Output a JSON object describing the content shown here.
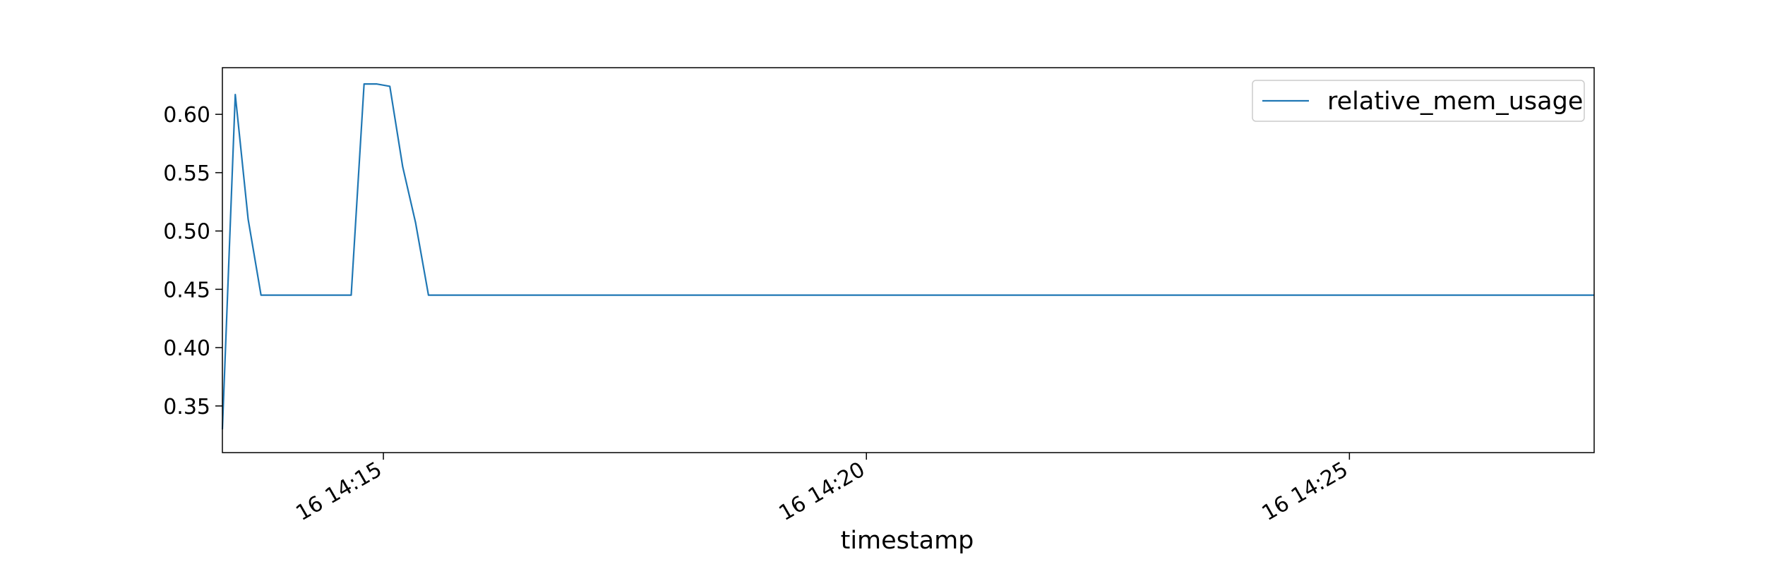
{
  "chart_data": {
    "type": "line",
    "title": "",
    "xlabel": "timestamp",
    "ylabel": "",
    "x_unit": "time (MM:SS past 14:00 on day 16)",
    "xlim": [
      "13:20",
      "27:32"
    ],
    "ylim": [
      0.31,
      0.64
    ],
    "yticks": [
      0.35,
      0.4,
      0.45,
      0.5,
      0.55,
      0.6
    ],
    "ytick_labels": [
      "0.35",
      "0.40",
      "0.45",
      "0.50",
      "0.55",
      "0.60"
    ],
    "xticks": [
      "15:00",
      "20:00",
      "25:00"
    ],
    "xtick_labels": [
      "16 14:15",
      "16 14:20",
      "16 14:25"
    ],
    "grid": false,
    "legend_position": "top-right",
    "series": [
      {
        "name": "relative_mem_usage",
        "color": "#1f77b4",
        "points": [
          [
            "13:20",
            0.33
          ],
          [
            "13:28",
            0.617
          ],
          [
            "13:36",
            0.51
          ],
          [
            "13:44",
            0.445
          ],
          [
            "14:00",
            0.445
          ],
          [
            "14:16",
            0.445
          ],
          [
            "14:32",
            0.445
          ],
          [
            "14:40",
            0.445
          ],
          [
            "14:48",
            0.626
          ],
          [
            "14:56",
            0.626
          ],
          [
            "15:04",
            0.624
          ],
          [
            "15:12",
            0.555
          ],
          [
            "15:20",
            0.507
          ],
          [
            "15:28",
            0.445
          ],
          [
            "15:44",
            0.445
          ],
          [
            "16:00",
            0.445
          ],
          [
            "17:00",
            0.445
          ],
          [
            "18:00",
            0.445
          ],
          [
            "19:00",
            0.445
          ],
          [
            "20:00",
            0.445
          ],
          [
            "21:00",
            0.445
          ],
          [
            "22:00",
            0.445
          ],
          [
            "23:00",
            0.445
          ],
          [
            "24:00",
            0.445
          ],
          [
            "25:00",
            0.445
          ],
          [
            "26:00",
            0.445
          ],
          [
            "27:00",
            0.445
          ],
          [
            "27:32",
            0.445
          ]
        ]
      }
    ]
  }
}
